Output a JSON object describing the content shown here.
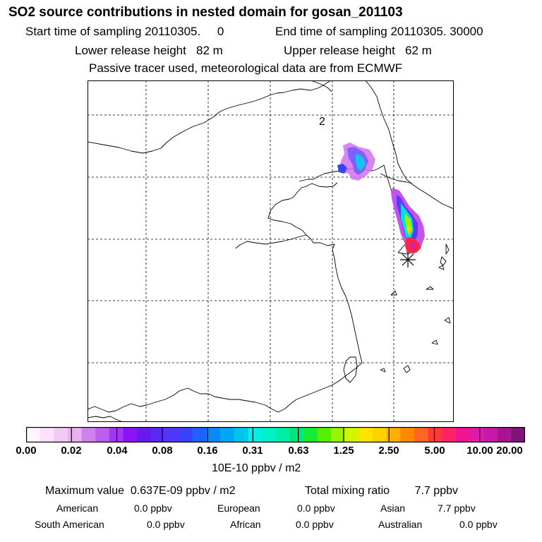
{
  "header": {
    "title": "SO2 source contributions in nested domain for gosan_201103",
    "start_time": "Start time of sampling 20110305.     0",
    "end_time": "End time of sampling 20110305. 30000",
    "lower_release": "Lower release height   82 m",
    "upper_release": "Upper release height   62 m",
    "note": "Passive tracer used, meteorological data are from ECMWF"
  },
  "map": {
    "map_label": "2",
    "receptor_marker": "asterisk-icon",
    "colors": {
      "frame": "#000000",
      "coast": "#000000",
      "grid": "#000000",
      "plume_low": "#cc44ff",
      "plume_mid": "#00e6e6",
      "plume_high": "#ff2a2a"
    }
  },
  "colorbar": {
    "colors": [
      "#fff4ff",
      "#fbe1fb",
      "#f2cbf4",
      "#e8b2ef",
      "#cf82ec",
      "#bb5ef0",
      "#a535f3",
      "#8c13f5",
      "#6a18f0",
      "#5c28f5",
      "#4f36f8",
      "#3a42fb",
      "#2060ff",
      "#0a88ff",
      "#00a8f6",
      "#00c6ee",
      "#00f0e8",
      "#00f0c8",
      "#00eea4",
      "#00e67a",
      "#14ec36",
      "#55f000",
      "#98f400",
      "#d2f500",
      "#ffe400",
      "#ffd200",
      "#ffb000",
      "#ff8a00",
      "#ff6620",
      "#ff3838",
      "#ff2266",
      "#f01492",
      "#e01aa8",
      "#c818a8",
      "#a81490",
      "#801478"
    ],
    "ticks": [
      "0.00",
      "0.02",
      "0.04",
      "0.08",
      "0.16",
      "0.31",
      "0.63",
      "1.25",
      "2.50",
      "5.00",
      "10.00",
      "20.00"
    ],
    "units": "10E-10 ppbv / m2"
  },
  "stats": {
    "max_value": "Maximum value  0.637E-09 ppbv / m2",
    "total_mixing": "Total mixing ratio        7.7 ppbv",
    "american": "American",
    "american_val": "0.0 ppbv",
    "european": "European",
    "european_val": "0.0 ppbv",
    "asian": "Asian",
    "asian_val": "7.7 ppbv",
    "south_american": "South American",
    "south_american_val": "0.0 ppbv",
    "african": "African",
    "african_val": "0.0 ppbv",
    "australian": "Australian",
    "australian_val": "0.0 ppbv"
  }
}
